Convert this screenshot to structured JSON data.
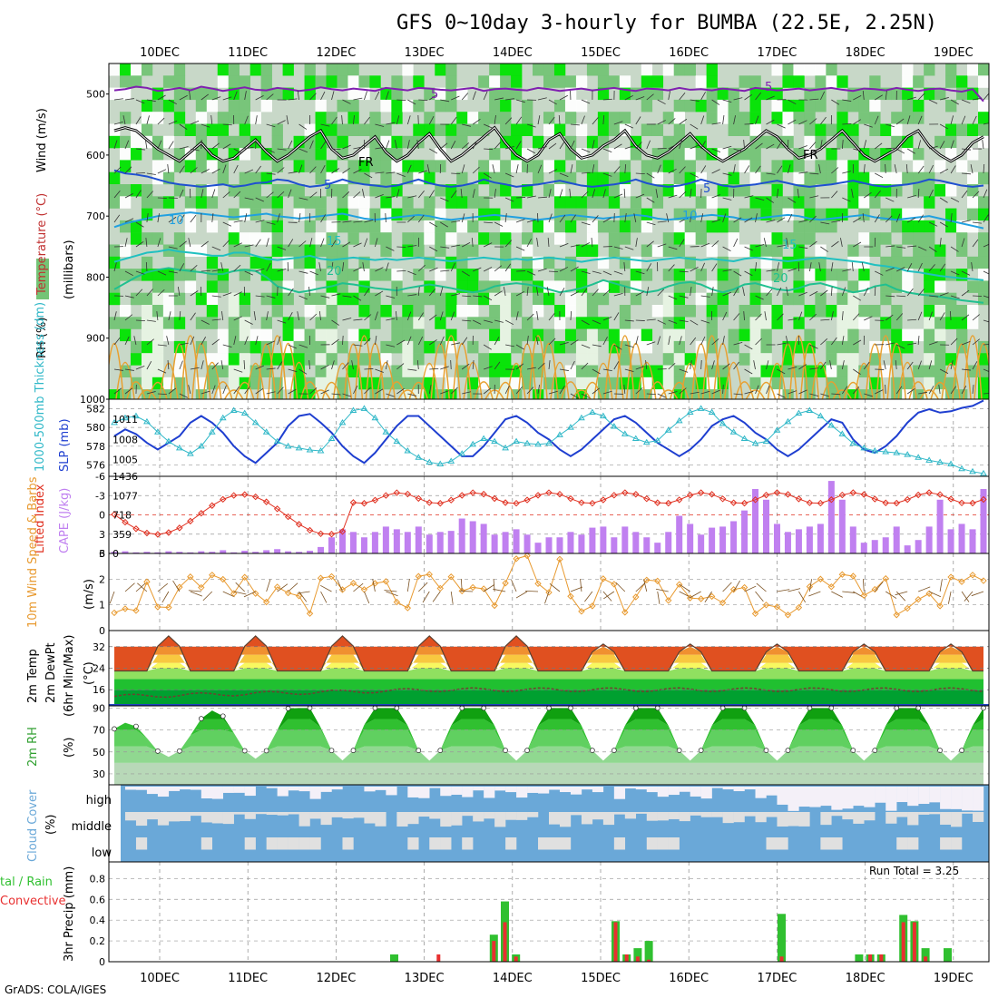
{
  "title": "GFS 0~10day 3-hourly for BUMBA (22.5E, 2.25N)",
  "footer": "GrADS: COLA/IGES",
  "dates": [
    "10DEC",
    "11DEC",
    "12DEC",
    "13DEC",
    "14DEC",
    "15DEC",
    "16DEC",
    "17DEC",
    "18DEC",
    "19DEC"
  ],
  "colors": {
    "rh_light": "#e8f4e4",
    "rh_mid": "#c8d8c8",
    "rh_green": "#74c476",
    "rh_bright": "#00e400",
    "slp": "#1f3fd0",
    "thickness": "#30b8c8",
    "lifted": "#e03020",
    "cape": "#c080f0",
    "wind": "#e89a30",
    "cloud_blue": "#6aa8d8",
    "cloud_grey": "#e0e0e0",
    "precip_total": "#30c030",
    "precip_conv": "#e83030"
  },
  "labels": {
    "p1_wind": "Wind (m/s)",
    "p1_temp": "Temperature (°C)",
    "p1_rh": "RH (%)",
    "p1_mb": "(millibars)",
    "p2_thick": "1000-500mb Thickness (dm)",
    "p2_slp": "SLP (mb)",
    "p3_li": "Lifted Index",
    "p3_cape": "CAPE (J/kg)",
    "p4_wind": "10m Wind Speed & Barbs",
    "p4_unit": "(m/s)",
    "p5_temp": "2m Temp",
    "p5_dew": "2m DewPt",
    "p5_mm": "(6hr Min/Max)",
    "p5_unit": "(°C)",
    "p6_rh": "2m RH",
    "p6_unit": "(%)",
    "p7_cloud": "Cloud Cover",
    "p7_unit": "(%)",
    "p7_levels": [
      "high",
      "middle",
      "low"
    ],
    "p8_total": "tal / Rain",
    "p8_conv": "Convective",
    "p8_precip": "3hr Precip (mm)",
    "run_total": "Run Total = 3.25",
    "iso_fr": "FR",
    "iso_labels": [
      "5",
      "10",
      "15",
      "20",
      "-5"
    ]
  },
  "chart_data": [
    {
      "type": "heatmap",
      "name": "Cross-section",
      "y_ticks": [
        "500",
        "600",
        "700",
        "800",
        "900",
        "1000"
      ],
      "ylim": [
        1000,
        450
      ],
      "isotherms": [
        {
          "name": "-5",
          "color": "#8020b0",
          "values": [
            494,
            492,
            488,
            490,
            495,
            493,
            490,
            494,
            488,
            491,
            495,
            492,
            489,
            493,
            494,
            490,
            492,
            495,
            493,
            489,
            492,
            494,
            491,
            493,
            495,
            490,
            492,
            494,
            490,
            491,
            493,
            494,
            492,
            490,
            495,
            492,
            491,
            493,
            494,
            490,
            492,
            495,
            493,
            491,
            494,
            492,
            490,
            493,
            495,
            491,
            492,
            494,
            490,
            493,
            492,
            494,
            491,
            493,
            495,
            490,
            492,
            494,
            493,
            491,
            494,
            492,
            490,
            493,
            495,
            491,
            492,
            494,
            490,
            493,
            495,
            492,
            491,
            494,
            496,
            492,
            512
          ]
        },
        {
          "name": "FR",
          "color": "#000000",
          "values": [
            560,
            555,
            560,
            575,
            590,
            600,
            610,
            595,
            580,
            600,
            610,
            605,
            590,
            575,
            595,
            610,
            600,
            585,
            570,
            560,
            590,
            605,
            600,
            585,
            570,
            595,
            610,
            600,
            580,
            565,
            590,
            610,
            600,
            585,
            570,
            555,
            580,
            600,
            610,
            600,
            575,
            565,
            590,
            605,
            600,
            585,
            575,
            560,
            585,
            600,
            605,
            595,
            580,
            565,
            585,
            600,
            610,
            600,
            590,
            575,
            560,
            570,
            590,
            605,
            600,
            590,
            575,
            560,
            580,
            600,
            610,
            600,
            590,
            570,
            560,
            585,
            600,
            610,
            600,
            580,
            570
          ]
        },
        {
          "name": "5",
          "color": "#1f50d0",
          "values": [
            625,
            630,
            632,
            635,
            640,
            645,
            648,
            650,
            652,
            650,
            648,
            652,
            650,
            646,
            645,
            640,
            642,
            648,
            652,
            650,
            646,
            640,
            645,
            648,
            650,
            652,
            650,
            645,
            640,
            646,
            650,
            652,
            650,
            646,
            640,
            645,
            648,
            652,
            650,
            648,
            645,
            642,
            646,
            650,
            652,
            650,
            648,
            645,
            640,
            646,
            650,
            652,
            650,
            646,
            640,
            645,
            650,
            652,
            650,
            648,
            645,
            642,
            646,
            650,
            652,
            650,
            648,
            645,
            642,
            646,
            650,
            652,
            650,
            648,
            645,
            640,
            642,
            646,
            650,
            652,
            650
          ]
        },
        {
          "name": "10",
          "color": "#20a0e0",
          "values": [
            718,
            712,
            708,
            704,
            700,
            698,
            696,
            694,
            696,
            698,
            700,
            702,
            700,
            698,
            696,
            700,
            702,
            704,
            702,
            700,
            698,
            696,
            700,
            704,
            706,
            704,
            702,
            700,
            698,
            700,
            704,
            706,
            704,
            702,
            700,
            698,
            700,
            702,
            704,
            706,
            704,
            700,
            698,
            700,
            702,
            704,
            702,
            700,
            698,
            700,
            704,
            706,
            704,
            702,
            700,
            698,
            700,
            702,
            706,
            704,
            702,
            700,
            698,
            700,
            704,
            706,
            704,
            702,
            700,
            698,
            702,
            704,
            706,
            704,
            702,
            700,
            704,
            708,
            712,
            716,
            720
          ]
        },
        {
          "name": "15",
          "color": "#20c0c0",
          "values": [
            775,
            770,
            765,
            760,
            758,
            755,
            758,
            760,
            762,
            765,
            765,
            760,
            760,
            765,
            770,
            772,
            770,
            768,
            765,
            770,
            772,
            770,
            768,
            770,
            772,
            770,
            772,
            770,
            768,
            770,
            772,
            774,
            772,
            770,
            768,
            770,
            772,
            770,
            772,
            770,
            768,
            770,
            772,
            775,
            772,
            770,
            768,
            770,
            772,
            774,
            772,
            770,
            768,
            770,
            772,
            770,
            772,
            774,
            770,
            768,
            770,
            772,
            774,
            772,
            770,
            768,
            770,
            772,
            774,
            776,
            780,
            782,
            785,
            790,
            792,
            795,
            798,
            800,
            802,
            803,
            805
          ]
        },
        {
          "name": "20",
          "color": "#20c090",
          "values": [
            820,
            810,
            800,
            792,
            788,
            785,
            788,
            790,
            792,
            795,
            795,
            790,
            788,
            790,
            800,
            815,
            820,
            825,
            822,
            818,
            815,
            810,
            812,
            815,
            818,
            820,
            822,
            818,
            815,
            812,
            815,
            818,
            822,
            825,
            822,
            815,
            812,
            810,
            812,
            815,
            820,
            825,
            822,
            818,
            812,
            805,
            810,
            815,
            820,
            825,
            822,
            815,
            810,
            808,
            812,
            820,
            825,
            820,
            812,
            810,
            815,
            820,
            822,
            818,
            812,
            810,
            815,
            820,
            825,
            822,
            815,
            812,
            820,
            825,
            828,
            830,
            832,
            835,
            838,
            840,
            842
          ]
        }
      ]
    },
    {
      "type": "line",
      "name": "SLP and Thickness",
      "y_ticks_left": [
        "576",
        "578",
        "580",
        "582"
      ],
      "y_ticks_right": [
        "1005",
        "1008",
        "1011"
      ],
      "series": [
        {
          "name": "SLP",
          "values": [
            1008.5,
            1009.5,
            1008.8,
            1007.5,
            1006.5,
            1007.5,
            1008.5,
            1010.5,
            1011.5,
            1010.5,
            1009,
            1007,
            1005.5,
            1004.5,
            1006,
            1007.5,
            1010,
            1011.5,
            1011.8,
            1010.5,
            1009,
            1007,
            1005.5,
            1004.5,
            1006,
            1008,
            1010,
            1011.5,
            1011.5,
            1010,
            1008.5,
            1007,
            1005.5,
            1005.5,
            1007,
            1009,
            1011,
            1011.5,
            1010.5,
            1009,
            1008,
            1006.5,
            1005.5,
            1006.5,
            1008,
            1009.5,
            1011,
            1011.5,
            1010.5,
            1009,
            1007.5,
            1006.5,
            1005.5,
            1006.5,
            1008,
            1010,
            1011,
            1011.5,
            1010.5,
            1009,
            1008,
            1006.5,
            1005.5,
            1006.5,
            1008,
            1009.5,
            1011,
            1010.5,
            1008,
            1006.5,
            1006,
            1007,
            1008.5,
            1010.5,
            1012,
            1012.5,
            1012,
            1012.2,
            1012.7,
            1013,
            1013.8
          ]
        },
        {
          "name": "Thickness",
          "values": [
            580.5,
            581,
            581.2,
            580.6,
            579.5,
            578.5,
            577.8,
            577.2,
            578,
            579.5,
            581,
            581.8,
            581.5,
            580.5,
            579.5,
            578.5,
            578,
            577.8,
            577.6,
            577.5,
            578.8,
            580.5,
            581.8,
            582,
            581,
            579.5,
            578.5,
            577.5,
            576.8,
            576.3,
            576.1,
            576.4,
            577.2,
            578.2,
            578.8,
            578.5,
            577.8,
            578.5,
            578.3,
            578.2,
            578.3,
            579.2,
            580,
            581,
            581.6,
            581.2,
            580.1,
            579.3,
            578.8,
            578.4,
            578.6,
            579.7,
            580.7,
            581.6,
            582,
            581.6,
            580.4,
            579.5,
            578.8,
            578.3,
            578.5,
            579.7,
            580.6,
            581.5,
            581.8,
            581.2,
            580.2,
            579.3,
            578.3,
            577.8,
            577.5,
            577.4,
            577.3,
            577.1,
            576.8,
            576.5,
            576.3,
            576.1,
            575.6,
            575.3,
            575.1
          ]
        }
      ]
    },
    {
      "type": "bar",
      "name": "CAPE and Lifted Index",
      "y_ticks_left": [
        "6",
        "3",
        "0",
        "-3",
        "-6"
      ],
      "y_ticks_right": [
        "0",
        "359",
        "718",
        "1077",
        "1436"
      ],
      "cape": [
        30,
        40,
        20,
        30,
        20,
        40,
        30,
        20,
        40,
        30,
        60,
        20,
        50,
        30,
        60,
        80,
        40,
        30,
        50,
        120,
        300,
        450,
        400,
        300,
        400,
        500,
        450,
        400,
        500,
        350,
        400,
        420,
        650,
        600,
        550,
        350,
        400,
        450,
        350,
        200,
        300,
        300,
        400,
        350,
        480,
        500,
        300,
        500,
        400,
        300,
        200,
        400,
        700,
        550,
        350,
        480,
        500,
        600,
        800,
        1200,
        1000,
        550,
        400,
        450,
        500,
        550,
        1350,
        1000,
        500,
        200,
        250,
        300,
        500,
        150,
        250,
        500,
        1000,
        450,
        550,
        450,
        1200
      ]
    }
  ]
}
